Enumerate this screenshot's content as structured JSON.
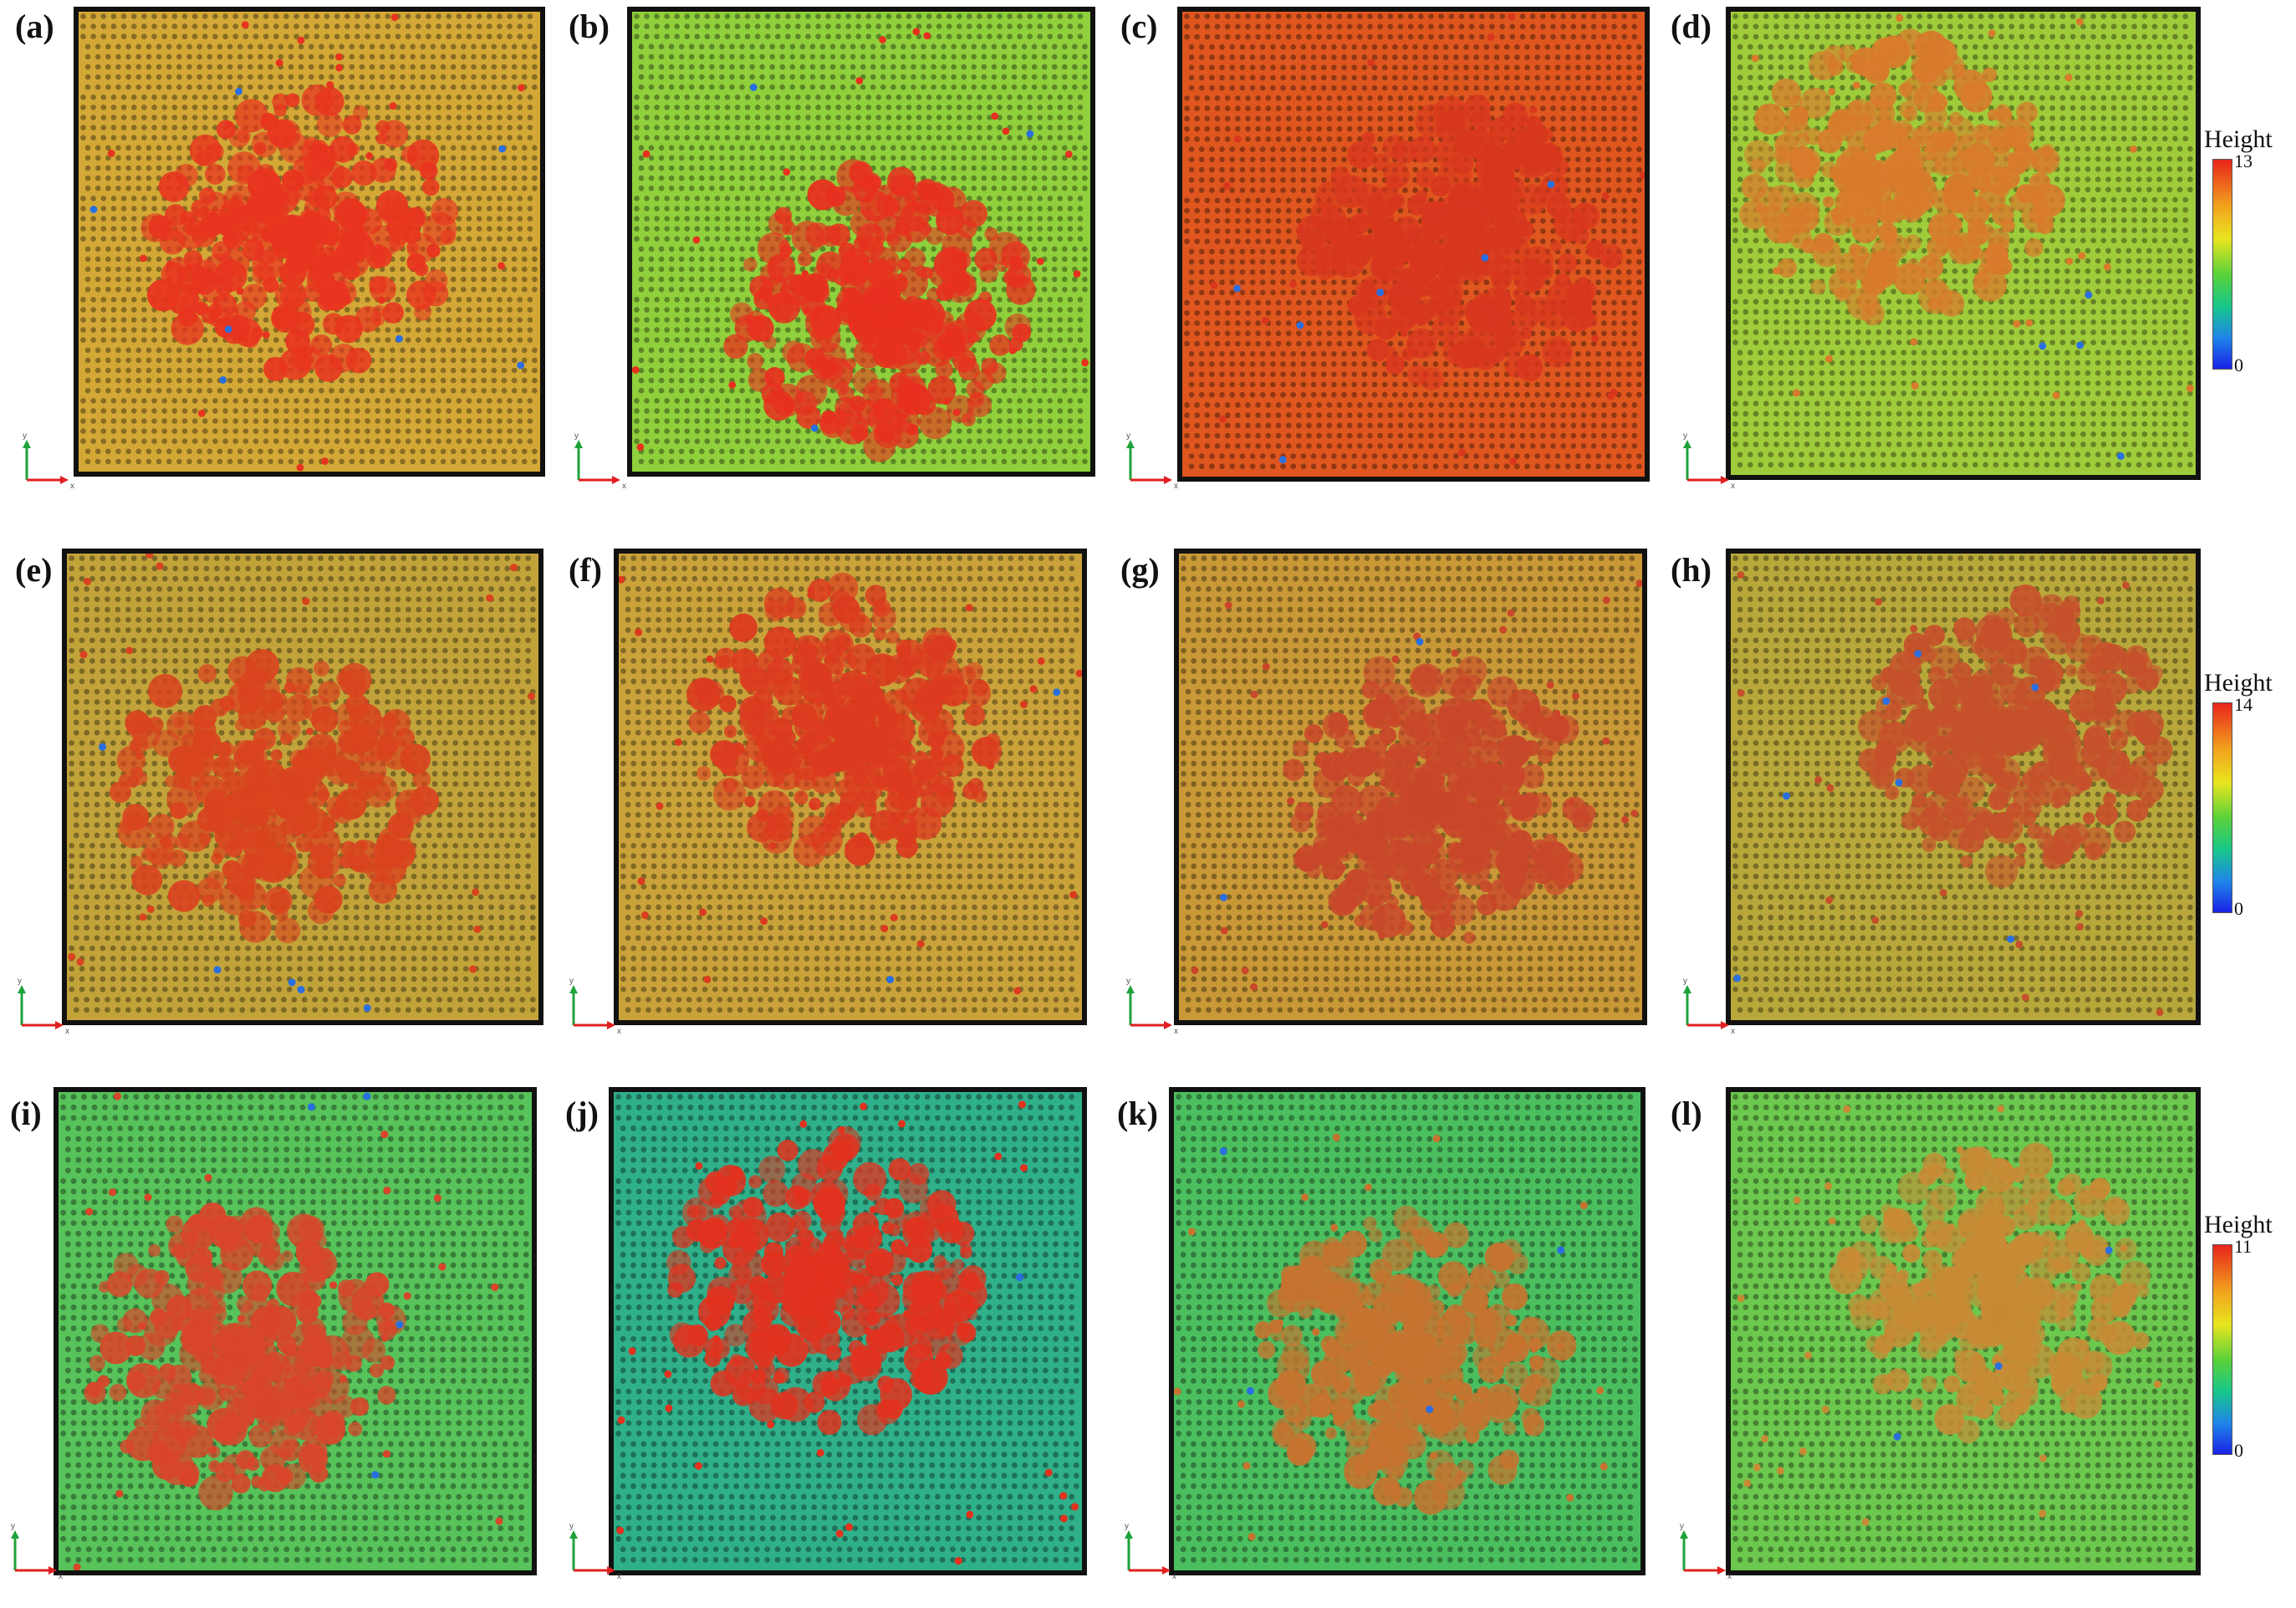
{
  "panels": [
    {
      "label": "(a)",
      "bg": "#d3a836",
      "blob": "#e8341f",
      "variant": 1
    },
    {
      "label": "(b)",
      "bg": "#8fd03c",
      "blob": "#e8301f",
      "variant": 2
    },
    {
      "label": "(c)",
      "bg": "#e0561f",
      "blob": "#d8371e",
      "variant": 3
    },
    {
      "label": "(d)",
      "bg": "#9fcc3a",
      "blob": "#d97a2c",
      "variant": 4
    },
    {
      "label": "(e)",
      "bg": "#c2a33a",
      "blob": "#d9431f",
      "variant": 5
    },
    {
      "label": "(f)",
      "bg": "#c9a23a",
      "blob": "#dc3a1f",
      "variant": 6
    },
    {
      "label": "(g)",
      "bg": "#c99837",
      "blob": "#c9462a",
      "variant": 7
    },
    {
      "label": "(h)",
      "bg": "#b8a83b",
      "blob": "#c6502b",
      "variant": 8
    },
    {
      "label": "(i)",
      "bg": "#57c35a",
      "blob": "#d9452a",
      "variant": 9
    },
    {
      "label": "(j)",
      "bg": "#2fb08a",
      "blob": "#e2321f",
      "variant": 10
    },
    {
      "label": "(k)",
      "bg": "#4bbf5f",
      "blob": "#c7732f",
      "variant": 11
    },
    {
      "label": "(l)",
      "bg": "#6cc84e",
      "blob": "#c98a35",
      "variant": 12
    }
  ],
  "colorbars": [
    {
      "title": "Height",
      "max": "13",
      "min": "0"
    },
    {
      "title": "Height",
      "max": "14",
      "min": "0"
    },
    {
      "title": "Height",
      "max": "11",
      "min": "0"
    }
  ],
  "axes": {
    "x_label": "x",
    "y_label": "y",
    "x_color": "#e02020",
    "y_color": "#1fa23a"
  }
}
